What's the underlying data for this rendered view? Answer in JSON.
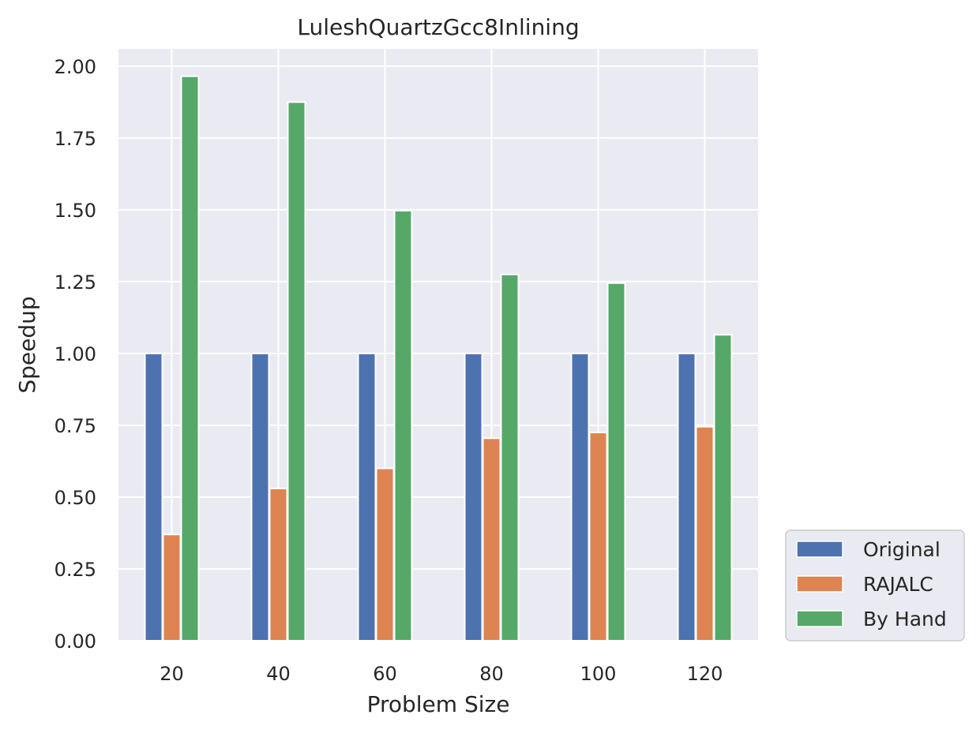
{
  "chart_data": {
    "type": "bar",
    "title": "LuleshQuartzGcc8Inlining",
    "xlabel": "Problem Size",
    "ylabel": "Speedup",
    "categories": [
      "20",
      "40",
      "60",
      "80",
      "100",
      "120"
    ],
    "series": [
      {
        "name": "Original",
        "values": [
          1.0,
          1.0,
          1.0,
          1.0,
          1.0,
          1.0
        ],
        "color": "#4c72b0"
      },
      {
        "name": "RAJALC",
        "values": [
          0.37,
          0.53,
          0.6,
          0.705,
          0.725,
          0.745
        ],
        "color": "#dd8452"
      },
      {
        "name": "By Hand",
        "values": [
          1.965,
          1.875,
          1.497,
          1.275,
          1.245,
          1.065
        ],
        "color": "#55a868"
      }
    ],
    "ylim": [
      0,
      2.06
    ],
    "yticks": [
      "0.00",
      "0.25",
      "0.50",
      "0.75",
      "1.00",
      "1.25",
      "1.50",
      "1.75",
      "2.00"
    ],
    "grid": true,
    "legend_position": "bottom-right-outside",
    "colors": {
      "plot_background": "#eaeaf2",
      "grid": "#ffffff",
      "text": "#262626"
    }
  }
}
